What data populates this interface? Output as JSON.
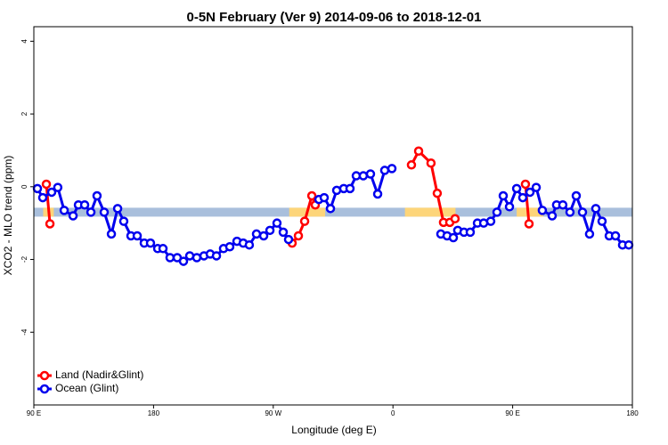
{
  "chart_data": {
    "type": "line",
    "title": "0-5N February (Ver 9)   2014-09-06 to 2018-12-01",
    "xlabel": "Longitude (deg E)",
    "ylabel": "XCO2 - MLO trend (ppm)",
    "xlim": [
      90,
      540
    ],
    "ylim": [
      -6,
      4.4
    ],
    "xticks": [
      {
        "value": 90,
        "label": "90 E"
      },
      {
        "value": 180,
        "label": "180"
      },
      {
        "value": 270,
        "label": "90 W"
      },
      {
        "value": 360,
        "label": "0"
      },
      {
        "value": 450,
        "label": "90 E"
      },
      {
        "value": 540,
        "label": "180"
      }
    ],
    "yticks": [
      4,
      2,
      0,
      -2,
      -4
    ],
    "legend": "bottom-left",
    "band": {
      "value": -0.7,
      "segments": [
        {
          "x": [
            90,
            540
          ],
          "color": "#a9bfdc"
        },
        {
          "x": [
            97,
            105
          ],
          "color": "#fdd57a"
        },
        {
          "x": [
            282,
            309
          ],
          "color": "#fdd57a"
        },
        {
          "x": [
            369,
            407
          ],
          "color": "#fdd57a"
        },
        {
          "x": [
            453,
            473
          ],
          "color": "#fdd57a"
        }
      ]
    },
    "series": [
      {
        "name": "Land (Nadir&Glint)",
        "color": "#ff0000",
        "x": [
          99.4,
          102.1,
          null,
          284.2,
          288.9,
          293.6,
          299,
          301.6,
          null,
          373.9,
          379.3,
          388.6,
          393.3,
          398,
          402.7,
          406.7,
          null,
          459.6,
          462.3
        ],
        "values": [
          0.07,
          -1.02,
          null,
          -1.55,
          -1.35,
          -0.95,
          -0.25,
          -0.5,
          null,
          0.6,
          0.98,
          0.65,
          -0.18,
          -0.98,
          -0.98,
          -0.88,
          null,
          0.07,
          -1.02
        ]
      },
      {
        "name": "Ocean (Glint)",
        "color": "#0000ee",
        "x": [
          92.7,
          96.7,
          103.4,
          108,
          112.8,
          119.5,
          123.5,
          128.2,
          132.9,
          137.5,
          142.9,
          148.3,
          153,
          157.6,
          163,
          167.7,
          173,
          177.7,
          183.1,
          187.1,
          192.4,
          197.8,
          202.5,
          207.2,
          212.5,
          217.9,
          222.6,
          227.3,
          232.6,
          237.3,
          242.7,
          247.4,
          252,
          257.4,
          262.8,
          267.5,
          272.8,
          277.5,
          281.5,
          null,
          304.3,
          308.3,
          313,
          317.7,
          323,
          327.7,
          332.4,
          337.7,
          343.1,
          348.5,
          353.8,
          359.2,
          null,
          396,
          400.7,
          405.4,
          408.7,
          413.4,
          418.1,
          423.5,
          428.2,
          433.5,
          438.2,
          442.9,
          447.6,
          453,
          457.6,
          463,
          467.7,
          472.3,
          479.7,
          483,
          487.7,
          493.1,
          497.8,
          502.5,
          507.8,
          512.5,
          517.2,
          522.6,
          527.3,
          532.6,
          537.3
        ],
        "values": [
          -0.05,
          -0.3,
          -0.15,
          -0.02,
          -0.65,
          -0.8,
          -0.5,
          -0.5,
          -0.7,
          -0.25,
          -0.7,
          -1.3,
          -0.6,
          -0.95,
          -1.35,
          -1.35,
          -1.55,
          -1.55,
          -1.7,
          -1.7,
          -1.95,
          -1.95,
          -2.05,
          -1.9,
          -1.95,
          -1.9,
          -1.85,
          -1.9,
          -1.7,
          -1.65,
          -1.5,
          -1.55,
          -1.6,
          -1.3,
          -1.35,
          -1.2,
          -1.0,
          -1.25,
          -1.45,
          null,
          -0.35,
          -0.3,
          -0.6,
          -0.1,
          -0.05,
          -0.05,
          0.3,
          0.3,
          0.35,
          -0.2,
          0.45,
          0.5,
          null,
          -1.3,
          -1.35,
          -1.4,
          -1.2,
          -1.25,
          -1.25,
          -1.0,
          -1.0,
          -0.95,
          -0.7,
          -0.25,
          -0.55,
          -0.05,
          -0.3,
          -0.15,
          -0.02,
          -0.65,
          -0.8,
          -0.5,
          -0.5,
          -0.7,
          -0.25,
          -0.7,
          -1.3,
          -0.6,
          -0.95,
          -1.35,
          -1.35,
          -1.6,
          -1.6
        ]
      }
    ]
  }
}
